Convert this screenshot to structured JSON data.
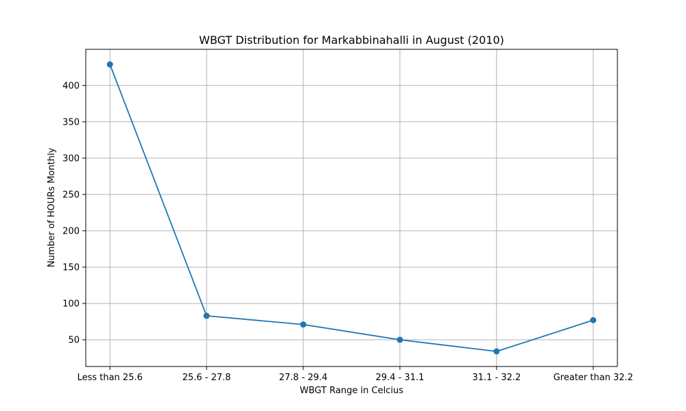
{
  "chart_data": {
    "type": "line",
    "title": "WBGT Distribution for Markabbinahalli in August (2010)",
    "xlabel": "WBGT Range in Celcius",
    "ylabel": "Number of HOURs Monthly",
    "categories": [
      "Less than 25.6",
      "25.6 - 27.8",
      "27.8 - 29.4",
      "29.4 - 31.1",
      "31.1 - 32.2",
      "Greater than 32.2"
    ],
    "values": [
      429,
      83,
      71,
      50,
      34,
      77
    ],
    "ylim": [
      13.25,
      449.75
    ],
    "yticks": [
      50,
      100,
      150,
      200,
      250,
      300,
      350,
      400
    ],
    "grid": true,
    "line_color": "#1f77b4",
    "marker": "circle"
  }
}
